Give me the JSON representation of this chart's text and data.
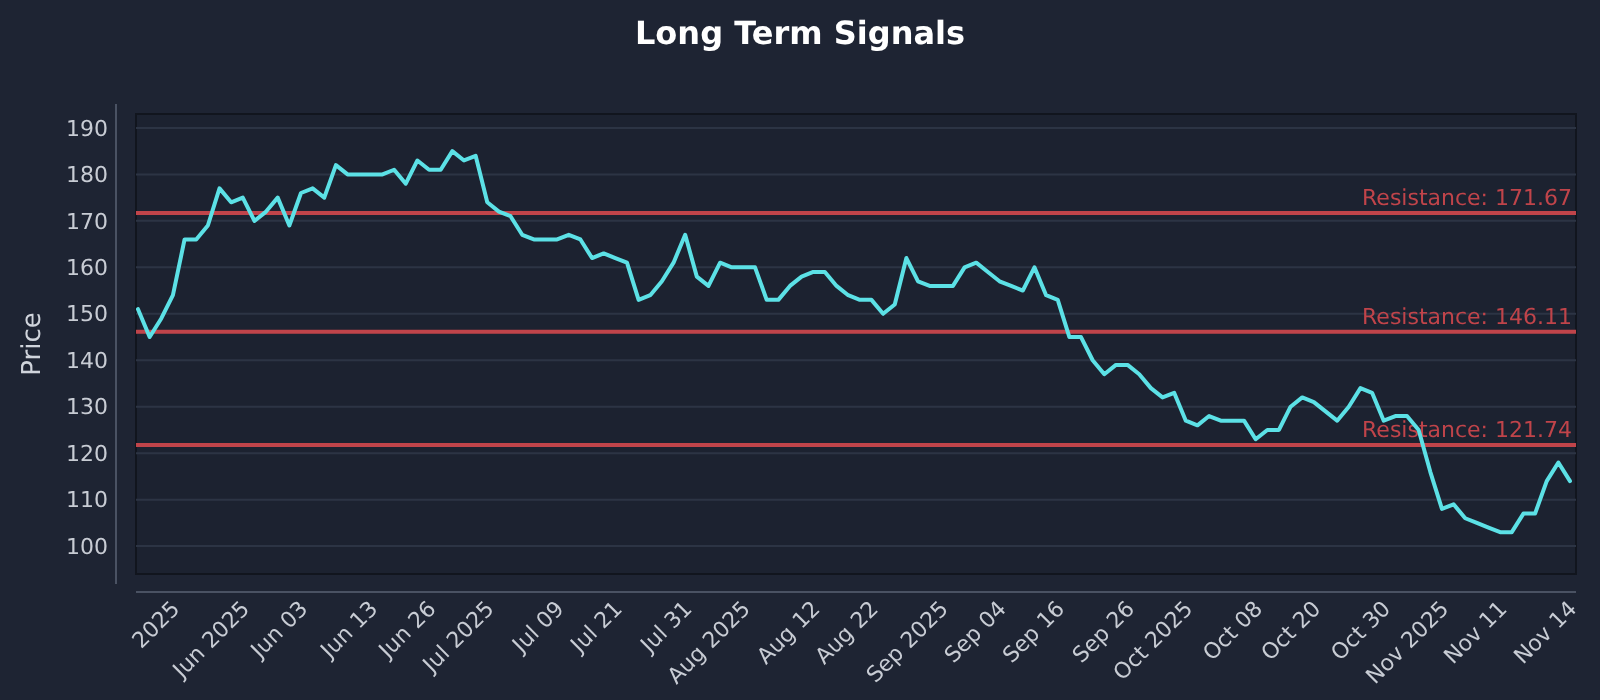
{
  "chart_data": {
    "type": "line",
    "title": "Long Term Signals",
    "ylabel": "Price",
    "categories": [
      null,
      null,
      null,
      "2025",
      null,
      null,
      null,
      null,
      null,
      "Jun 2025",
      null,
      null,
      null,
      null,
      "Jun 03",
      null,
      null,
      null,
      null,
      null,
      "Jun 13",
      null,
      null,
      null,
      null,
      "Jun 26",
      null,
      null,
      null,
      null,
      "Jul 2025",
      null,
      null,
      null,
      null,
      null,
      "Jul 09",
      null,
      null,
      null,
      null,
      "Jul 21",
      null,
      null,
      null,
      null,
      null,
      "Jul 31",
      null,
      null,
      null,
      null,
      "Aug 2025",
      null,
      null,
      null,
      null,
      null,
      "Aug 12",
      null,
      null,
      null,
      null,
      "Aug 22",
      null,
      null,
      null,
      null,
      null,
      "Sep 2025",
      null,
      null,
      null,
      null,
      "Sep 04",
      null,
      null,
      null,
      null,
      "Sep 16",
      null,
      null,
      null,
      null,
      null,
      "Sep 26",
      null,
      null,
      null,
      null,
      "Oct 2025",
      null,
      null,
      null,
      null,
      null,
      "Oct 08",
      null,
      null,
      null,
      null,
      "Oct 20",
      null,
      null,
      null,
      null,
      null,
      "Oct 30",
      null,
      null,
      null,
      null,
      "Nov 2025",
      null,
      null,
      null,
      null,
      "Nov 11",
      null,
      null,
      null,
      null,
      null,
      "Nov 14"
    ],
    "series": [
      {
        "color": "#5ce1e6",
        "values": [
          151,
          145,
          149,
          154,
          166,
          166,
          169,
          177,
          174,
          175,
          170,
          172,
          175,
          169,
          176,
          177,
          175,
          182,
          180,
          180,
          180,
          180,
          181,
          178,
          183,
          181,
          181,
          185,
          183,
          184,
          174,
          172,
          171,
          167,
          166,
          166,
          166,
          167,
          166,
          162,
          163,
          162,
          161,
          153,
          154,
          157,
          161,
          167,
          158,
          156,
          161,
          160,
          160,
          160,
          153,
          153,
          156,
          158,
          159,
          159,
          156,
          154,
          153,
          153,
          150,
          152,
          162,
          157,
          156,
          156,
          156,
          160,
          161,
          159,
          157,
          156,
          155,
          160,
          154,
          153,
          145,
          145,
          140,
          137,
          139,
          139,
          137,
          134,
          132,
          133,
          127,
          126,
          128,
          127,
          127,
          127,
          123,
          125,
          125,
          130,
          132,
          131,
          129,
          127,
          130,
          134,
          133,
          127,
          128,
          128,
          125,
          116,
          108,
          109,
          106,
          105,
          104,
          103,
          103,
          107,
          107,
          114,
          118,
          114
        ]
      }
    ],
    "ylim": [
      94,
      193
    ],
    "yticks": [
      100,
      110,
      120,
      130,
      140,
      150,
      160,
      170,
      180,
      190
    ],
    "grid": "y",
    "ref_lines": [
      {
        "axis": "y",
        "value": 171.67,
        "label": "Resistance: 171.67",
        "color": "#c0444a"
      },
      {
        "axis": "y",
        "value": 146.11,
        "label": "Resistance: 146.11",
        "color": "#c0444a"
      },
      {
        "axis": "y",
        "value": 121.74,
        "label": "Resistance: 121.74",
        "color": "#c0444a"
      }
    ]
  }
}
